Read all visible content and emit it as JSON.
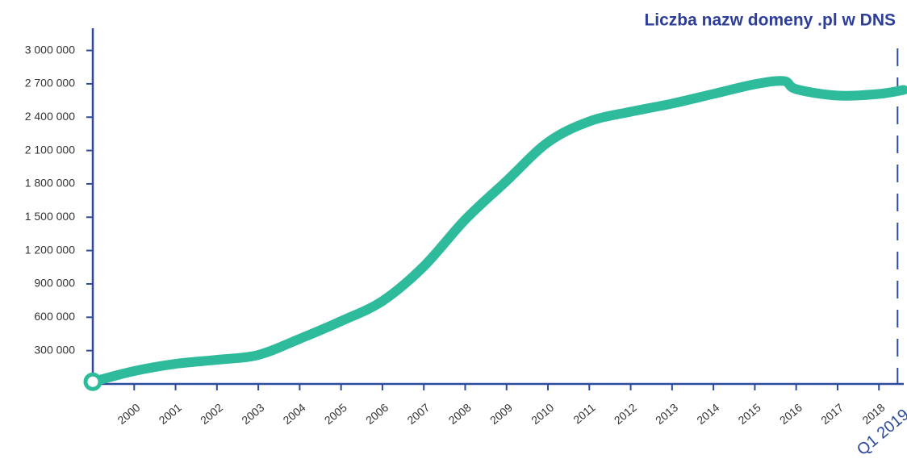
{
  "chart_data": {
    "type": "line",
    "title": "Liczba nazw domeny .pl w DNS",
    "x": [
      1999,
      2000,
      2001,
      2002,
      2003,
      2004,
      2005,
      2006,
      2007,
      2008,
      2009,
      2010,
      2011,
      2012,
      2013,
      2014,
      2015,
      2015.7,
      2016,
      2017,
      2018,
      2018.6
    ],
    "series": [
      {
        "name": "Liczba nazw domeny .pl w DNS",
        "color": "#2dbb9c",
        "values": [
          20000,
          116000,
          181000,
          217000,
          261000,
          406000,
          565000,
          746000,
          1058000,
          1478000,
          1826000,
          2174000,
          2362000,
          2449000,
          2522000,
          2609000,
          2696000,
          2725000,
          2652000,
          2594000,
          2609000,
          2645000
        ]
      }
    ],
    "xlim": [
      1999,
      2018.6
    ],
    "xticks": [
      2000,
      2001,
      2002,
      2003,
      2004,
      2005,
      2006,
      2007,
      2008,
      2009,
      2010,
      2011,
      2012,
      2013,
      2014,
      2015,
      2016,
      2017,
      2018,
      {
        "value": 2018.45,
        "label": "Q1 2019"
      }
    ],
    "ylim": [
      0,
      3200000
    ],
    "yticks": [
      {
        "value": 300000,
        "label": "300 000"
      },
      {
        "value": 600000,
        "label": "600 000"
      },
      {
        "value": 900000,
        "label": "900 000"
      },
      {
        "value": 1200000,
        "label": "1 200 000"
      },
      {
        "value": 1500000,
        "label": "1 500 000"
      },
      {
        "value": 1800000,
        "label": "1 800 000"
      },
      {
        "value": 2100000,
        "label": "2 100 000"
      },
      {
        "value": 2400000,
        "label": "2 400 000"
      },
      {
        "value": 2700000,
        "label": "2 700 000"
      },
      {
        "value": 3000000,
        "label": "3 000 000"
      }
    ],
    "axis_color": "#2c4a9e"
  }
}
